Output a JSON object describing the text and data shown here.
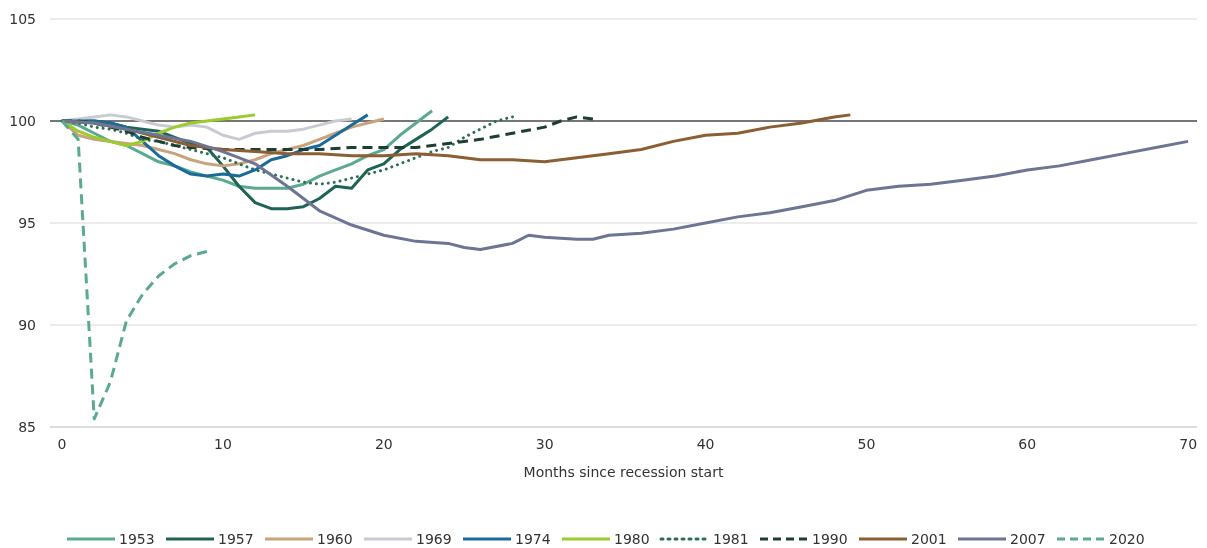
{
  "chart_data": {
    "type": "line",
    "xlabel": "Months since recession start",
    "xlim": [
      -0.75,
      70.55
    ],
    "xticks": [
      0,
      10,
      20,
      30,
      40,
      50,
      60,
      70
    ],
    "ylim": [
      85,
      105
    ],
    "yticks": [
      85,
      90,
      95,
      100,
      105
    ],
    "grid": "y",
    "legend": "bottom",
    "ref_lines": [
      {
        "axis": "y",
        "value": 100,
        "color": "#000000"
      }
    ],
    "series": [
      {
        "name": "1953",
        "color": "#5aaa8f",
        "line_style": "solid",
        "x": [
          0,
          1,
          2,
          3,
          4,
          5,
          6,
          7,
          8,
          9,
          10,
          11,
          12,
          13,
          14,
          15,
          16,
          17,
          18,
          19,
          20,
          21,
          22,
          23
        ],
        "values": [
          100,
          99.8,
          99.4,
          99,
          98.8,
          98.4,
          98,
          97.8,
          97.5,
          97.3,
          97.1,
          96.8,
          96.7,
          96.7,
          96.7,
          96.9,
          97.3,
          97.6,
          97.9,
          98.3,
          98.6,
          99.3,
          99.9,
          100.5
        ]
      },
      {
        "name": "1957",
        "color": "#1f6356",
        "line_style": "solid",
        "x": [
          0,
          1,
          2,
          3,
          4,
          5,
          6,
          7,
          8,
          9,
          10,
          11,
          12,
          13,
          14,
          15,
          16,
          17,
          18,
          19,
          20,
          21,
          22,
          23,
          24
        ],
        "values": [
          100,
          100,
          100,
          99.9,
          99.7,
          99.6,
          99.5,
          99.2,
          98.9,
          98.7,
          97.8,
          96.8,
          96,
          95.7,
          95.7,
          95.8,
          96.2,
          96.8,
          96.7,
          97.6,
          97.9,
          98.6,
          99.1,
          99.6,
          100.2
        ]
      },
      {
        "name": "1960",
        "color": "#c9a27e",
        "line_style": "solid",
        "x": [
          0,
          1,
          2,
          3,
          4,
          5,
          6,
          7,
          8,
          9,
          10,
          11,
          12,
          13,
          14,
          15,
          16,
          17,
          18,
          19,
          20
        ],
        "values": [
          100,
          99.3,
          99.1,
          99,
          98.9,
          98.8,
          98.6,
          98.4,
          98.1,
          97.9,
          97.8,
          97.9,
          98.1,
          98.4,
          98.6,
          98.8,
          99.1,
          99.4,
          99.7,
          99.9,
          100.1
        ]
      },
      {
        "name": "1969",
        "color": "#c8ccd2",
        "line_style": "solid",
        "x": [
          0,
          1,
          2,
          3,
          4,
          5,
          6,
          7,
          8,
          9,
          10,
          11,
          12,
          13,
          14,
          15,
          16,
          17,
          18
        ],
        "values": [
          100,
          100.1,
          100.2,
          100.3,
          100.2,
          100,
          99.8,
          99.7,
          99.8,
          99.7,
          99.3,
          99.1,
          99.4,
          99.5,
          99.5,
          99.6,
          99.8,
          100,
          100.1
        ]
      },
      {
        "name": "1974",
        "color": "#1a6a9a",
        "line_style": "solid",
        "x": [
          0,
          1,
          2,
          3,
          4,
          5,
          6,
          7,
          8,
          9,
          10,
          11,
          12,
          13,
          14,
          15,
          16,
          17,
          18,
          19
        ],
        "values": [
          100,
          100,
          100,
          99.9,
          99.7,
          99,
          98.3,
          97.8,
          97.4,
          97.3,
          97.4,
          97.3,
          97.6,
          98.1,
          98.3,
          98.6,
          98.8,
          99.3,
          99.8,
          100.3
        ]
      },
      {
        "name": "1980",
        "color": "#9ccc2c",
        "line_style": "solid",
        "x": [
          0,
          1,
          2,
          3,
          4,
          5,
          6,
          7,
          8,
          9,
          10,
          11,
          12
        ],
        "values": [
          100,
          99.5,
          99.2,
          99,
          98.8,
          99,
          99.4,
          99.7,
          99.9,
          100,
          100.1,
          100.2,
          100.3
        ]
      },
      {
        "name": "1981",
        "color": "#2c6e55",
        "line_style": "dotted",
        "x": [
          0,
          1,
          2,
          3,
          4,
          5,
          6,
          7,
          8,
          9,
          10,
          11,
          12,
          13,
          14,
          15,
          16,
          17,
          18,
          19,
          20,
          21,
          22,
          23,
          24,
          25,
          26,
          27,
          28
        ],
        "values": [
          100,
          99.9,
          99.7,
          99.6,
          99.4,
          99.1,
          99,
          98.8,
          98.6,
          98.4,
          98.2,
          97.9,
          97.6,
          97.4,
          97.2,
          97,
          96.9,
          97,
          97.2,
          97.4,
          97.6,
          97.9,
          98.2,
          98.5,
          98.7,
          99.2,
          99.6,
          100,
          100.2
        ]
      },
      {
        "name": "1990",
        "color": "#1d3d35",
        "line_style": "dashed",
        "x": [
          0,
          1,
          2,
          3,
          4,
          5,
          6,
          7,
          8,
          10,
          12,
          14,
          16,
          18,
          20,
          22,
          24,
          26,
          28,
          30,
          31,
          32,
          33
        ],
        "values": [
          100,
          100,
          99.9,
          99.7,
          99.5,
          99.2,
          99,
          98.8,
          98.7,
          98.6,
          98.6,
          98.6,
          98.6,
          98.7,
          98.7,
          98.7,
          98.9,
          99.1,
          99.4,
          99.7,
          100,
          100.2,
          100.1
        ]
      },
      {
        "name": "2001",
        "color": "#8b5e34",
        "line_style": "solid",
        "x": [
          0,
          2,
          4,
          6,
          8,
          10,
          12,
          14,
          16,
          18,
          20,
          22,
          24,
          26,
          28,
          30,
          32,
          34,
          36,
          38,
          40,
          42,
          44,
          46,
          48,
          49
        ],
        "values": [
          100,
          99.9,
          99.6,
          99.2,
          98.8,
          98.6,
          98.5,
          98.4,
          98.4,
          98.3,
          98.3,
          98.4,
          98.3,
          98.1,
          98.1,
          98,
          98.2,
          98.4,
          98.6,
          99,
          99.3,
          99.4,
          99.7,
          99.9,
          100.2,
          100.3
        ]
      },
      {
        "name": "2007",
        "color": "#6c7593",
        "line_style": "solid",
        "x": [
          0,
          2,
          4,
          6,
          8,
          10,
          12,
          14,
          16,
          18,
          20,
          22,
          24,
          25,
          26,
          28,
          29,
          30,
          32,
          33,
          34,
          36,
          38,
          40,
          42,
          44,
          46,
          48,
          50,
          52,
          54,
          56,
          58,
          60,
          62,
          64,
          66,
          68,
          70
        ],
        "values": [
          100,
          99.9,
          99.6,
          99.3,
          99,
          98.5,
          97.9,
          96.8,
          95.6,
          94.9,
          94.4,
          94.1,
          94,
          93.8,
          93.7,
          94,
          94.4,
          94.3,
          94.2,
          94.2,
          94.4,
          94.5,
          94.7,
          95,
          95.3,
          95.5,
          95.8,
          96.1,
          96.6,
          96.8,
          96.9,
          97.1,
          97.3,
          97.6,
          97.8,
          98.1,
          98.4,
          98.7,
          99
        ]
      },
      {
        "name": "2020",
        "color": "#5aaa8f",
        "line_style": "dashed",
        "x": [
          0,
          1,
          2,
          3,
          4,
          5,
          6,
          7,
          8,
          9
        ],
        "values": [
          100,
          99.1,
          85.4,
          87.2,
          90.2,
          91.5,
          92.4,
          93,
          93.4,
          93.6
        ]
      }
    ]
  }
}
